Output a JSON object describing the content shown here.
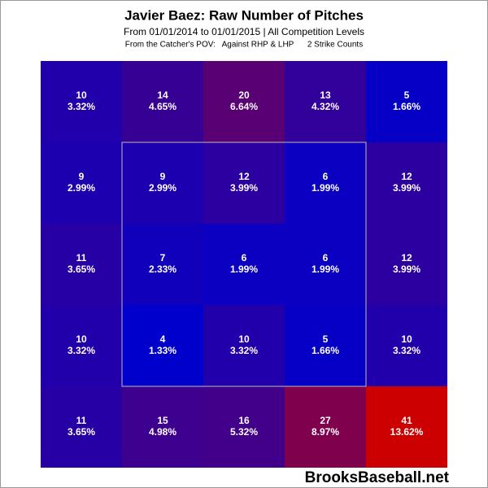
{
  "chart_data": {
    "type": "heatmap",
    "title": "Javier Baez: Raw Number of Pitches",
    "subtitle": "From 01/01/2014 to 01/01/2015 | All Competition Levels",
    "note": "From the Catcher's POV:   Against RHP & LHP      2 Strike Counts",
    "watermark": "BrooksBaseball.net",
    "values": [
      [
        10,
        14,
        20,
        13,
        5
      ],
      [
        9,
        9,
        12,
        6,
        12
      ],
      [
        11,
        7,
        6,
        6,
        12
      ],
      [
        10,
        4,
        10,
        5,
        10
      ],
      [
        11,
        15,
        16,
        27,
        41
      ]
    ],
    "percentages": [
      [
        3.32,
        4.65,
        6.64,
        4.32,
        1.66
      ],
      [
        2.99,
        2.99,
        3.99,
        1.99,
        3.99
      ],
      [
        3.65,
        2.33,
        1.99,
        1.99,
        3.99
      ],
      [
        3.32,
        1.33,
        3.32,
        1.66,
        3.32
      ],
      [
        3.65,
        4.98,
        5.32,
        8.97,
        13.62
      ]
    ],
    "percentage_labels": [
      [
        "3.32%",
        "4.65%",
        "6.64%",
        "4.32%",
        "1.66%"
      ],
      [
        "2.99%",
        "2.99%",
        "3.99%",
        "1.99%",
        "3.99%"
      ],
      [
        "3.65%",
        "2.33%",
        "1.99%",
        "1.99%",
        "3.99%"
      ],
      [
        "3.32%",
        "1.33%",
        "3.32%",
        "1.66%",
        "3.32%"
      ],
      [
        "3.65%",
        "4.98%",
        "5.32%",
        "8.97%",
        "13.62%"
      ]
    ],
    "color_low": "#0000cc",
    "color_high": "#cc0000"
  }
}
